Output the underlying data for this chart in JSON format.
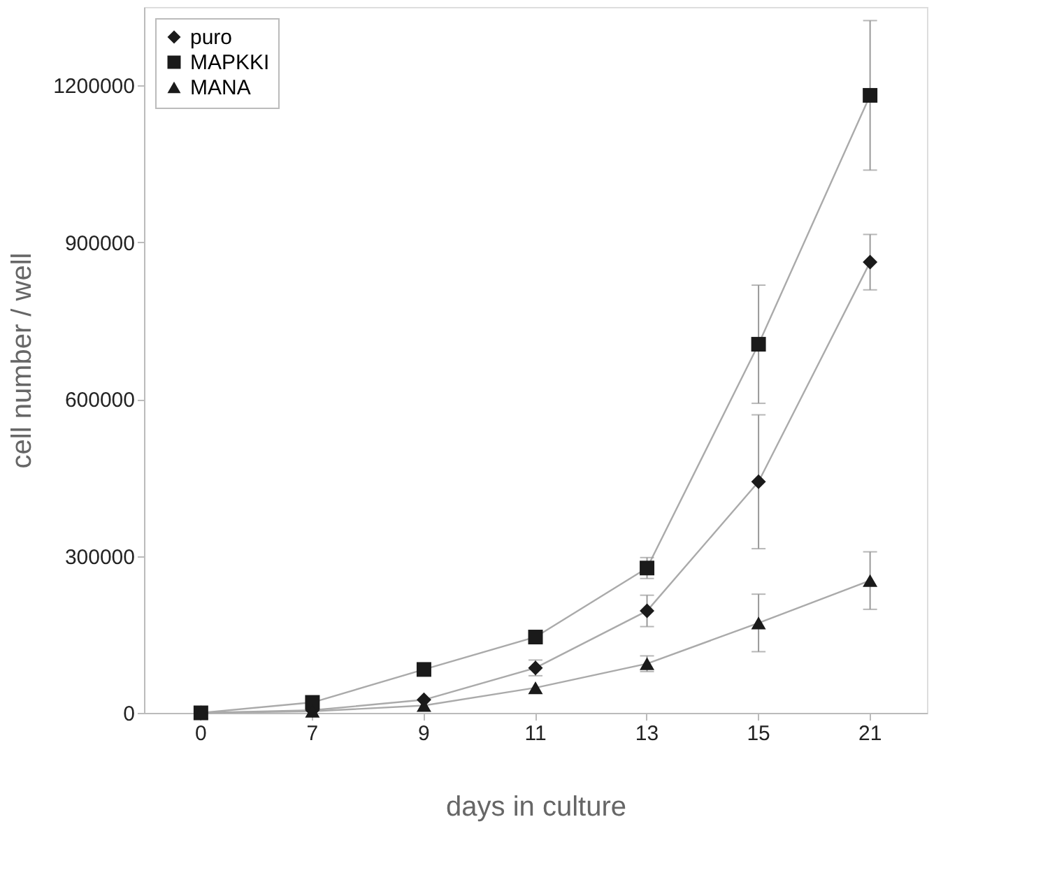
{
  "chart_data": {
    "type": "line",
    "xlabel": "days in culture",
    "ylabel": "cell number / well",
    "categories": [
      "0",
      "7",
      "9",
      "11",
      "13",
      "15",
      "21"
    ],
    "series": [
      {
        "name": "puro",
        "color": "#1a1a1a",
        "marker": "diamond",
        "values": [
          0,
          5000,
          25000,
          86000,
          195000,
          442000,
          862000
        ],
        "errors": [
          null,
          null,
          null,
          15000,
          30000,
          128000,
          53000
        ]
      },
      {
        "name": "MAPKKI",
        "color": "#1a1a1a",
        "marker": "square",
        "values": [
          0,
          20000,
          83000,
          145000,
          277000,
          705000,
          1181000
        ],
        "errors": [
          null,
          null,
          null,
          null,
          20000,
          113000,
          143000
        ]
      },
      {
        "name": "MANA",
        "color": "#1a1a1a",
        "marker": "triangle",
        "values": [
          0,
          3000,
          14000,
          48000,
          94000,
          172000,
          253000
        ],
        "errors": [
          null,
          null,
          null,
          null,
          15000,
          55000,
          55000
        ]
      }
    ],
    "ylim": [
      0,
      1350000
    ],
    "yticks": [
      0,
      300000,
      600000,
      900000,
      1200000
    ],
    "grid": false,
    "legend": "top left",
    "line_style": "solid"
  }
}
